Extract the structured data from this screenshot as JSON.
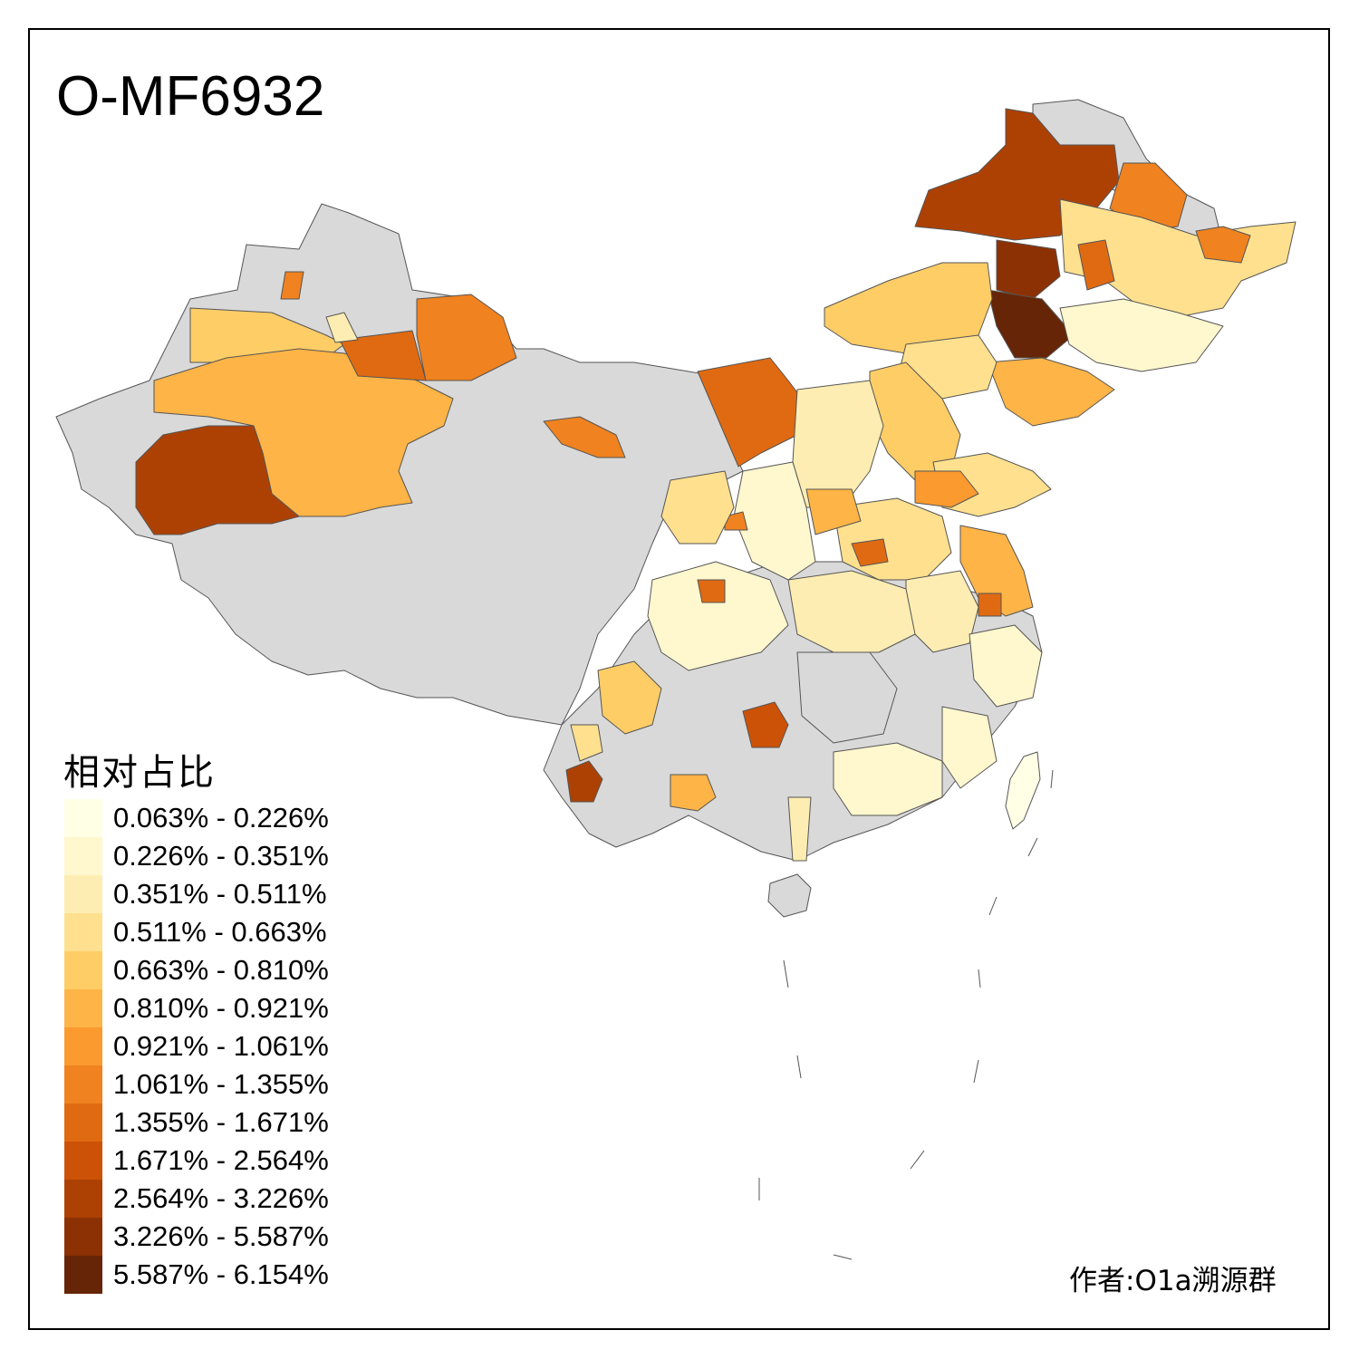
{
  "title": "O-MF6932",
  "legend": {
    "title": "相对占比",
    "items": [
      {
        "label": "0.063% - 0.226%",
        "color": "#FFFFE5"
      },
      {
        "label": "0.226% - 0.351%",
        "color": "#FFF7CE"
      },
      {
        "label": "0.351% - 0.511%",
        "color": "#FEEDB2"
      },
      {
        "label": "0.511% - 0.663%",
        "color": "#FEE08E"
      },
      {
        "label": "0.663% - 0.810%",
        "color": "#FECD66"
      },
      {
        "label": "0.810% - 0.921%",
        "color": "#FEB446"
      },
      {
        "label": "0.921% - 1.061%",
        "color": "#FB9A2F"
      },
      {
        "label": "1.061% - 1.355%",
        "color": "#F0821F"
      },
      {
        "label": "1.355% - 1.671%",
        "color": "#E06A12"
      },
      {
        "label": "1.671% - 2.564%",
        "color": "#CC5207"
      },
      {
        "label": "2.564% - 3.226%",
        "color": "#AD4104"
      },
      {
        "label": "3.226% - 5.587%",
        "color": "#8C3104"
      },
      {
        "label": "5.587% - 6.154%",
        "color": "#662506"
      }
    ]
  },
  "map": {
    "no_data_color": "#D9D9D9",
    "border_color": "#555555"
  },
  "credit": "作者:O1a溯源群"
}
